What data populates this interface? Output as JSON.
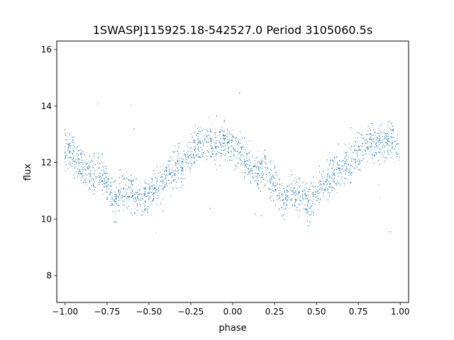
{
  "chart_data": {
    "type": "scatter",
    "title": "1SWASPJ115925.18-542527.0 Period 3105060.5s",
    "xlabel": "phase",
    "ylabel": "flux",
    "xlim": [
      -1.05,
      1.05
    ],
    "ylim": [
      7.05,
      16.3
    ],
    "grid": false,
    "marker_color": "#1f77b4",
    "x_ticks": [
      {
        "value": -1.0,
        "label": "−1.00"
      },
      {
        "value": -0.75,
        "label": "−0.75"
      },
      {
        "value": -0.5,
        "label": "−0.50"
      },
      {
        "value": -0.25,
        "label": "−0.25"
      },
      {
        "value": 0.0,
        "label": "0.00"
      },
      {
        "value": 0.25,
        "label": "0.25"
      },
      {
        "value": 0.5,
        "label": "0.50"
      },
      {
        "value": 0.75,
        "label": "0.75"
      },
      {
        "value": 1.0,
        "label": "1.00"
      }
    ],
    "y_ticks": [
      {
        "value": 8,
        "label": "8"
      },
      {
        "value": 10,
        "label": "10"
      },
      {
        "value": 12,
        "label": "12"
      },
      {
        "value": 14,
        "label": "14"
      },
      {
        "value": 16,
        "label": "16"
      }
    ],
    "series": [
      {
        "phase_flux_profile": [
          {
            "x": -1.0,
            "y": 12.5
          },
          {
            "x": -0.95,
            "y": 12.3
          },
          {
            "x": -0.9,
            "y": 11.9
          },
          {
            "x": -0.85,
            "y": 11.6
          },
          {
            "x": -0.8,
            "y": 11.7
          },
          {
            "x": -0.75,
            "y": 11.3
          },
          {
            "x": -0.7,
            "y": 10.6
          },
          {
            "x": -0.65,
            "y": 11.0
          },
          {
            "x": -0.6,
            "y": 10.9
          },
          {
            "x": -0.55,
            "y": 10.6
          },
          {
            "x": -0.5,
            "y": 10.9
          },
          {
            "x": -0.45,
            "y": 11.2
          },
          {
            "x": -0.4,
            "y": 11.5
          },
          {
            "x": -0.35,
            "y": 11.8
          },
          {
            "x": -0.3,
            "y": 12.0
          },
          {
            "x": -0.25,
            "y": 12.3
          },
          {
            "x": -0.2,
            "y": 12.7
          },
          {
            "x": -0.15,
            "y": 12.8
          },
          {
            "x": -0.1,
            "y": 12.6
          },
          {
            "x": -0.05,
            "y": 12.8
          },
          {
            "x": 0.0,
            "y": 12.5
          },
          {
            "x": 0.05,
            "y": 12.3
          },
          {
            "x": 0.1,
            "y": 11.9
          },
          {
            "x": 0.15,
            "y": 11.6
          },
          {
            "x": 0.2,
            "y": 11.7
          },
          {
            "x": 0.25,
            "y": 11.3
          },
          {
            "x": 0.3,
            "y": 10.6
          },
          {
            "x": 0.35,
            "y": 11.0
          },
          {
            "x": 0.4,
            "y": 10.9
          },
          {
            "x": 0.45,
            "y": 10.6
          },
          {
            "x": 0.5,
            "y": 10.9
          },
          {
            "x": 0.55,
            "y": 11.2
          },
          {
            "x": 0.6,
            "y": 11.5
          },
          {
            "x": 0.65,
            "y": 11.8
          },
          {
            "x": 0.7,
            "y": 12.0
          },
          {
            "x": 0.75,
            "y": 12.3
          },
          {
            "x": 0.8,
            "y": 12.7
          },
          {
            "x": 0.85,
            "y": 12.8
          },
          {
            "x": 0.9,
            "y": 12.6
          },
          {
            "x": 0.95,
            "y": 12.8
          },
          {
            "x": 1.0,
            "y": 12.5
          }
        ],
        "scatter_half_width": 0.75
      }
    ]
  }
}
